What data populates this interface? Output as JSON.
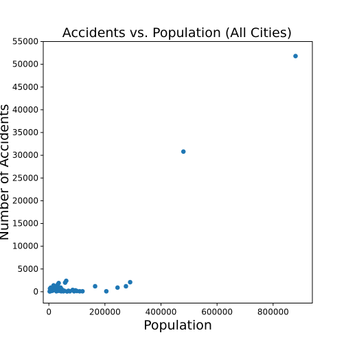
{
  "chart_data": {
    "type": "scatter",
    "title": "Accidents vs. Population (All Cities)",
    "xlabel": "Population",
    "ylabel": "Number of Accidents",
    "xlim": [
      -20000,
      940000
    ],
    "ylim": [
      -2500,
      55000
    ],
    "xticks": [
      0,
      200000,
      400000,
      600000,
      800000
    ],
    "xtick_labels": [
      "0",
      "200000",
      "400000",
      "600000",
      "800000"
    ],
    "yticks": [
      0,
      5000,
      10000,
      15000,
      20000,
      25000,
      30000,
      35000,
      40000,
      45000,
      50000,
      55000
    ],
    "ytick_labels": [
      "0",
      "5000",
      "10000",
      "15000",
      "20000",
      "25000",
      "30000",
      "35000",
      "40000",
      "45000",
      "50000",
      "55000"
    ],
    "grid": false,
    "legend": false,
    "marker_color": "#1f77b4",
    "series": [
      {
        "x": [
          880000,
          480000,
          290000,
          275000,
          245000,
          205000,
          165000,
          120000,
          110000,
          95000,
          90000,
          85000,
          75000,
          62000,
          58000,
          55000,
          50000,
          45000,
          42000,
          40000,
          38000,
          35000,
          32000,
          30000,
          28000,
          25000,
          22000,
          20000,
          18000,
          15000,
          12000,
          10000,
          8000,
          6000,
          5000,
          3000,
          4000,
          7000,
          11000,
          14000,
          17000,
          21000,
          24000,
          27000,
          33000,
          36000,
          44000,
          48000,
          52000,
          65000,
          70000,
          100000
        ],
        "y": [
          51800,
          30800,
          2100,
          1200,
          900,
          100,
          1200,
          100,
          100,
          300,
          100,
          400,
          100,
          2400,
          2000,
          200,
          300,
          600,
          900,
          700,
          500,
          1900,
          1600,
          1200,
          900,
          600,
          1100,
          800,
          500,
          300,
          200,
          600,
          400,
          200,
          100,
          50,
          700,
          900,
          300,
          1000,
          1400,
          400,
          800,
          100,
          300,
          200,
          100,
          400,
          100,
          50,
          200,
          150
        ]
      }
    ]
  }
}
